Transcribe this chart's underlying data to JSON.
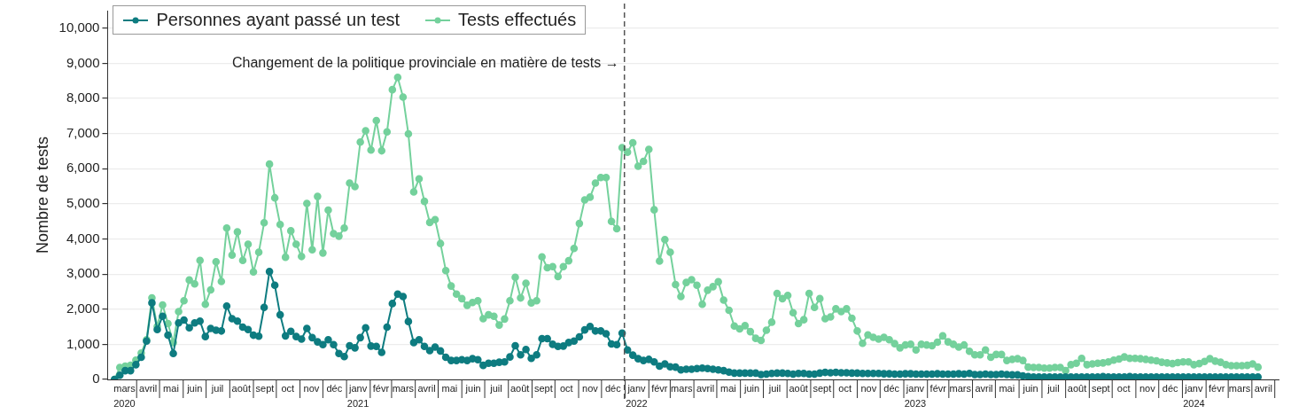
{
  "chart_data": {
    "type": "line",
    "ylabel": "Nombre de tests",
    "legend": "top left",
    "grid": "y",
    "marker": "circle",
    "line_style": "solid",
    "x": [
      "2020-03-03",
      "2020-03-10",
      "2020-03-17",
      "2020-03-24",
      "2020-03-31",
      "2020-04-07",
      "2020-04-14",
      "2020-04-21",
      "2020-04-28",
      "2020-05-05",
      "2020-05-12",
      "2020-05-19",
      "2020-05-26",
      "2020-06-02",
      "2020-06-09",
      "2020-06-16",
      "2020-06-23",
      "2020-06-30",
      "2020-07-07",
      "2020-07-14",
      "2020-07-21",
      "2020-07-28",
      "2020-08-04",
      "2020-08-11",
      "2020-08-18",
      "2020-08-25",
      "2020-09-01",
      "2020-09-08",
      "2020-09-15",
      "2020-09-22",
      "2020-09-29",
      "2020-10-06",
      "2020-10-13",
      "2020-10-20",
      "2020-10-27",
      "2020-11-03",
      "2020-11-10",
      "2020-11-17",
      "2020-11-24",
      "2020-12-01",
      "2020-12-08",
      "2020-12-15",
      "2020-12-22",
      "2020-12-29",
      "2021-01-05",
      "2021-01-12",
      "2021-01-19",
      "2021-01-26",
      "2021-02-02",
      "2021-02-09",
      "2021-02-16",
      "2021-02-23",
      "2021-03-02",
      "2021-03-09",
      "2021-03-16",
      "2021-03-23",
      "2021-03-30",
      "2021-04-06",
      "2021-04-13",
      "2021-04-20",
      "2021-04-27",
      "2021-05-04",
      "2021-05-11",
      "2021-05-18",
      "2021-05-25",
      "2021-06-01",
      "2021-06-08",
      "2021-06-15",
      "2021-06-22",
      "2021-06-29",
      "2021-07-06",
      "2021-07-13",
      "2021-07-20",
      "2021-07-27",
      "2021-08-03",
      "2021-08-10",
      "2021-08-17",
      "2021-08-24",
      "2021-08-31",
      "2021-09-07",
      "2021-09-14",
      "2021-09-21",
      "2021-09-28",
      "2021-10-05",
      "2021-10-12",
      "2021-10-19",
      "2021-10-26",
      "2021-11-02",
      "2021-11-09",
      "2021-11-16",
      "2021-11-23",
      "2021-11-30",
      "2021-12-07",
      "2021-12-14",
      "2021-12-21",
      "2021-12-28",
      "2022-01-04",
      "2022-01-11",
      "2022-01-18",
      "2022-01-25",
      "2022-02-01",
      "2022-02-08",
      "2022-02-15",
      "2022-02-22",
      "2022-03-01",
      "2022-03-08",
      "2022-03-15",
      "2022-03-22",
      "2022-03-29",
      "2022-04-05",
      "2022-04-12",
      "2022-04-19",
      "2022-04-26",
      "2022-05-03",
      "2022-05-10",
      "2022-05-17",
      "2022-05-24",
      "2022-05-31",
      "2022-06-07",
      "2022-06-14",
      "2022-06-21",
      "2022-06-28",
      "2022-07-05",
      "2022-07-12",
      "2022-07-19",
      "2022-07-26",
      "2022-08-02",
      "2022-08-09",
      "2022-08-16",
      "2022-08-23",
      "2022-08-30",
      "2022-09-06",
      "2022-09-13",
      "2022-09-20",
      "2022-09-27",
      "2022-10-04",
      "2022-10-11",
      "2022-10-18",
      "2022-10-25",
      "2022-11-01",
      "2022-11-08",
      "2022-11-15",
      "2022-11-22",
      "2022-11-29",
      "2022-12-06",
      "2022-12-13",
      "2022-12-20",
      "2022-12-27",
      "2023-01-03",
      "2023-01-10",
      "2023-01-17",
      "2023-01-24",
      "2023-01-31",
      "2023-02-07",
      "2023-02-14",
      "2023-02-21",
      "2023-02-28",
      "2023-03-07",
      "2023-03-14",
      "2023-03-21",
      "2023-03-28",
      "2023-04-04",
      "2023-04-11",
      "2023-04-18",
      "2023-04-25",
      "2023-05-02",
      "2023-05-09",
      "2023-05-16",
      "2023-05-23",
      "2023-05-30",
      "2023-06-06",
      "2023-06-13",
      "2023-06-20",
      "2023-06-27",
      "2023-07-04",
      "2023-07-11",
      "2023-07-18",
      "2023-07-25",
      "2023-08-01",
      "2023-08-08",
      "2023-08-15",
      "2023-08-22",
      "2023-08-29",
      "2023-09-05",
      "2023-09-12",
      "2023-09-19",
      "2023-09-26",
      "2023-10-03",
      "2023-10-10",
      "2023-10-17",
      "2023-10-24",
      "2023-10-31",
      "2023-11-07",
      "2023-11-14",
      "2023-11-21",
      "2023-11-28",
      "2023-12-05",
      "2023-12-12",
      "2023-12-19",
      "2023-12-26",
      "2024-01-02",
      "2024-01-09",
      "2024-01-16",
      "2024-01-23",
      "2024-01-30",
      "2024-02-06",
      "2024-02-13",
      "2024-02-20",
      "2024-02-27",
      "2024-03-05",
      "2024-03-12",
      "2024-03-19",
      "2024-03-26",
      "2024-04-02",
      "2024-04-09"
    ],
    "xlim": [
      "2020-02-23",
      "2024-05-06"
    ],
    "xticks": [
      {
        "value": "2020-03-16",
        "label": "mars\n2020"
      },
      {
        "value": "2020-04-16",
        "label": "avril"
      },
      {
        "value": "2020-05-16",
        "label": "mai"
      },
      {
        "value": "2020-06-16",
        "label": "juin"
      },
      {
        "value": "2020-07-16",
        "label": "juil"
      },
      {
        "value": "2020-08-16",
        "label": "août"
      },
      {
        "value": "2020-09-16",
        "label": "sept"
      },
      {
        "value": "2020-10-16",
        "label": "oct"
      },
      {
        "value": "2020-11-16",
        "label": "nov"
      },
      {
        "value": "2020-12-16",
        "label": "déc"
      },
      {
        "value": "2021-01-16",
        "label": "janv\n2021"
      },
      {
        "value": "2021-02-15",
        "label": "févr"
      },
      {
        "value": "2021-03-16",
        "label": "mars"
      },
      {
        "value": "2021-04-16",
        "label": "avril"
      },
      {
        "value": "2021-05-16",
        "label": "mai"
      },
      {
        "value": "2021-06-16",
        "label": "juin"
      },
      {
        "value": "2021-07-16",
        "label": "juil"
      },
      {
        "value": "2021-08-16",
        "label": "août"
      },
      {
        "value": "2021-09-16",
        "label": "sept"
      },
      {
        "value": "2021-10-16",
        "label": "oct"
      },
      {
        "value": "2021-11-16",
        "label": "nov"
      },
      {
        "value": "2021-12-16",
        "label": "déc"
      },
      {
        "value": "2022-01-16",
        "label": "janv\n2022"
      },
      {
        "value": "2022-02-15",
        "label": "févr"
      },
      {
        "value": "2022-03-16",
        "label": "mars"
      },
      {
        "value": "2022-04-16",
        "label": "avril"
      },
      {
        "value": "2022-05-16",
        "label": "mai"
      },
      {
        "value": "2022-06-16",
        "label": "juin"
      },
      {
        "value": "2022-07-16",
        "label": "juil"
      },
      {
        "value": "2022-08-16",
        "label": "août"
      },
      {
        "value": "2022-09-16",
        "label": "sept"
      },
      {
        "value": "2022-10-16",
        "label": "oct"
      },
      {
        "value": "2022-11-16",
        "label": "nov"
      },
      {
        "value": "2022-12-16",
        "label": "déc"
      },
      {
        "value": "2023-01-16",
        "label": "janv\n2023"
      },
      {
        "value": "2023-02-15",
        "label": "févr"
      },
      {
        "value": "2023-03-16",
        "label": "mars"
      },
      {
        "value": "2023-04-16",
        "label": "avril"
      },
      {
        "value": "2023-05-16",
        "label": "mai"
      },
      {
        "value": "2023-06-16",
        "label": "juin"
      },
      {
        "value": "2023-07-16",
        "label": "juil"
      },
      {
        "value": "2023-08-16",
        "label": "août"
      },
      {
        "value": "2023-09-16",
        "label": "sept"
      },
      {
        "value": "2023-10-16",
        "label": "oct"
      },
      {
        "value": "2023-11-16",
        "label": "nov"
      },
      {
        "value": "2023-12-16",
        "label": "déc"
      },
      {
        "value": "2024-01-16",
        "label": "janv\n2024"
      },
      {
        "value": "2024-02-15",
        "label": "févr"
      },
      {
        "value": "2024-03-16",
        "label": "mars"
      },
      {
        "value": "2024-04-16",
        "label": "avril"
      }
    ],
    "ylim": [
      0,
      10500
    ],
    "yticks": [
      0,
      {
        "value": 1000,
        "label": "1,000"
      },
      {
        "value": 2000,
        "label": "2,000"
      },
      {
        "value": 3000,
        "label": "3,000"
      },
      {
        "value": 4000,
        "label": "4,000"
      },
      {
        "value": 5000,
        "label": "5,000"
      },
      {
        "value": 6000,
        "label": "6,000"
      },
      {
        "value": 7000,
        "label": "7,000"
      },
      {
        "value": 8000,
        "label": "8,000"
      },
      {
        "value": 9000,
        "label": "9,000"
      },
      {
        "value": 10000,
        "label": "10,000"
      }
    ],
    "series": [
      {
        "name": "Personnes ayant passé un test",
        "color": "#0e7c80",
        "values": [
          0,
          120,
          250,
          250,
          420,
          630,
          1090,
          2180,
          1420,
          1800,
          1260,
          740,
          1610,
          1690,
          1470,
          1610,
          1660,
          1220,
          1450,
          1400,
          1380,
          2090,
          1730,
          1660,
          1490,
          1420,
          1260,
          1230,
          2050,
          3070,
          2680,
          1840,
          1240,
          1370,
          1220,
          1150,
          1450,
          1190,
          1070,
          990,
          1130,
          990,
          740,
          650,
          960,
          900,
          1190,
          1470,
          950,
          940,
          770,
          1490,
          2160,
          2430,
          2360,
          1650,
          1050,
          1130,
          940,
          820,
          920,
          810,
          630,
          540,
          540,
          560,
          540,
          590,
          560,
          400,
          460,
          460,
          490,
          500,
          640,
          960,
          700,
          850,
          600,
          700,
          1160,
          1160,
          1000,
          940,
          950,
          1050,
          1090,
          1210,
          1410,
          1510,
          1380,
          1380,
          1300,
          1010,
          990,
          1320,
          840,
          690,
          590,
          540,
          570,
          500,
          380,
          440,
          360,
          350,
          270,
          290,
          290,
          310,
          320,
          310,
          290,
          270,
          250,
          210,
          180,
          180,
          180,
          180,
          180,
          140,
          150,
          170,
          180,
          180,
          170,
          150,
          170,
          170,
          150,
          150,
          180,
          200,
          190,
          200,
          190,
          190,
          180,
          180,
          170,
          170,
          170,
          170,
          160,
          160,
          150,
          150,
          160,
          160,
          150,
          150,
          150,
          150,
          160,
          150,
          150,
          150,
          160,
          150,
          170,
          140,
          140,
          150,
          140,
          140,
          150,
          140,
          130,
          130,
          100,
          80,
          70,
          70,
          70,
          70,
          70,
          70,
          70,
          70,
          70,
          70,
          70,
          70,
          70,
          80,
          70,
          70,
          70,
          70,
          80,
          70,
          70,
          70,
          70,
          70,
          70,
          70,
          70,
          70,
          70,
          70,
          70,
          70,
          70,
          70,
          70,
          70,
          70,
          70,
          70,
          70,
          70,
          70,
          70
        ]
      },
      {
        "name": "Tests effectués",
        "color": "#74d19c",
        "values": [
          0,
          340,
          380,
          400,
          550,
          750,
          1130,
          2320,
          1510,
          2120,
          1590,
          1050,
          1930,
          2240,
          2830,
          2720,
          3390,
          2140,
          2550,
          3350,
          2790,
          4310,
          3540,
          4200,
          3390,
          3850,
          3060,
          3620,
          4460,
          6130,
          5170,
          4410,
          3480,
          4230,
          3850,
          3500,
          5010,
          3690,
          5210,
          3600,
          4820,
          4150,
          4080,
          4310,
          5590,
          5490,
          6760,
          7080,
          6530,
          7370,
          6510,
          7050,
          8250,
          8600,
          8040,
          6990,
          5340,
          5710,
          5070,
          4470,
          4550,
          3870,
          3100,
          2660,
          2430,
          2300,
          2110,
          2190,
          2240,
          1730,
          1840,
          1800,
          1550,
          1720,
          2240,
          2910,
          2320,
          2740,
          2180,
          2240,
          3490,
          3180,
          3210,
          2930,
          3210,
          3380,
          3730,
          4440,
          5110,
          5190,
          5590,
          5750,
          5750,
          4500,
          4290,
          6600,
          6470,
          6740,
          6070,
          6210,
          6550,
          4830,
          3370,
          3980,
          3620,
          2700,
          2360,
          2760,
          2840,
          2680,
          2140,
          2540,
          2640,
          2780,
          2260,
          1970,
          1520,
          1440,
          1530,
          1360,
          1170,
          1110,
          1400,
          1630,
          2450,
          2300,
          2390,
          1900,
          1590,
          1700,
          2450,
          2050,
          2300,
          1730,
          1780,
          2010,
          1930,
          2010,
          1740,
          1380,
          1030,
          1270,
          1200,
          1150,
          1200,
          1130,
          1020,
          900,
          980,
          1000,
          840,
          1000,
          980,
          960,
          1060,
          1240,
          1070,
          1000,
          920,
          980,
          800,
          700,
          700,
          840,
          630,
          710,
          710,
          540,
          570,
          590,
          540,
          350,
          340,
          340,
          320,
          320,
          340,
          340,
          250,
          420,
          460,
          600,
          420,
          440,
          460,
          470,
          500,
          550,
          580,
          640,
          600,
          600,
          590,
          570,
          550,
          530,
          490,
          470,
          450,
          480,
          500,
          500,
          420,
          450,
          510,
          590,
          520,
          490,
          420,
          390,
          390,
          390,
          400,
          440,
          350
        ]
      }
    ],
    "ref_lines": [
      {
        "axis": "x",
        "value": "2021-12-31",
        "label": "Changement de la politique provinciale en matière de tests →",
        "color": "#555555",
        "line_style": "dashed"
      }
    ]
  }
}
